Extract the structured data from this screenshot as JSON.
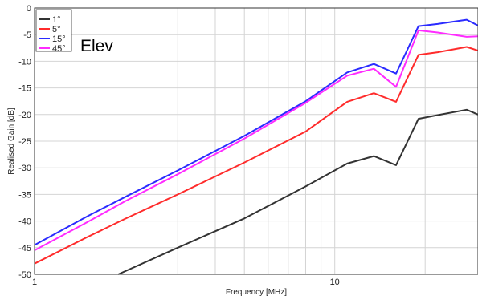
{
  "chart_data": {
    "type": "line",
    "title": "",
    "xlabel": "Frequency [MHz]",
    "ylabel": "Realised Gain [dB]",
    "xscale": "log",
    "xlim": [
      1,
      30
    ],
    "ylim": [
      -50,
      0
    ],
    "grid": true,
    "x_tick_labels": [
      {
        "value": 1,
        "label": "1"
      },
      {
        "value": 10,
        "label": "10"
      }
    ],
    "y_ticks": [
      0,
      -5,
      -10,
      -15,
      -20,
      -25,
      -30,
      -35,
      -40,
      -45,
      -50
    ],
    "legend_position": "top-left",
    "annotation": "Elev",
    "series": [
      {
        "name": "1°",
        "color": "#333333",
        "points": [
          [
            1.9,
            -50
          ],
          [
            3,
            -45
          ],
          [
            5,
            -39.5
          ],
          [
            8,
            -33.5
          ],
          [
            11,
            -29.2
          ],
          [
            13.5,
            -27.8
          ],
          [
            16,
            -29.5
          ],
          [
            19,
            -20.8
          ],
          [
            22,
            -20.1
          ],
          [
            27.5,
            -19.1
          ],
          [
            30,
            -20
          ]
        ]
      },
      {
        "name": "5°",
        "color": "#ff2b2b",
        "points": [
          [
            1,
            -48
          ],
          [
            1.5,
            -43
          ],
          [
            2,
            -39.6
          ],
          [
            3,
            -35
          ],
          [
            5,
            -29
          ],
          [
            8,
            -23.2
          ],
          [
            11,
            -17.6
          ],
          [
            13.5,
            -16
          ],
          [
            16,
            -17.6
          ],
          [
            19,
            -8.8
          ],
          [
            22,
            -8.3
          ],
          [
            27.5,
            -7.3
          ],
          [
            30,
            -8
          ]
        ]
      },
      {
        "name": "15°",
        "color": "#2b2bff",
        "points": [
          [
            1,
            -44.5
          ],
          [
            1.5,
            -39.1
          ],
          [
            2,
            -35.5
          ],
          [
            3,
            -30.5
          ],
          [
            5,
            -24
          ],
          [
            8,
            -17.5
          ],
          [
            11,
            -12.1
          ],
          [
            13.5,
            -10.5
          ],
          [
            16,
            -12.3
          ],
          [
            19,
            -3.4
          ],
          [
            22,
            -3
          ],
          [
            27.5,
            -2.2
          ],
          [
            30,
            -3.3
          ]
        ]
      },
      {
        "name": "45°",
        "color": "#ff2bff",
        "points": [
          [
            1,
            -45.5
          ],
          [
            1.5,
            -40.2
          ],
          [
            2,
            -36.3
          ],
          [
            3,
            -31.2
          ],
          [
            5,
            -24.5
          ],
          [
            8,
            -17.8
          ],
          [
            11,
            -12.7
          ],
          [
            13.5,
            -11.4
          ],
          [
            16,
            -14.8
          ],
          [
            19,
            -4.2
          ],
          [
            22,
            -4.6
          ],
          [
            27.5,
            -5.4
          ],
          [
            30,
            -5.3
          ]
        ]
      }
    ]
  }
}
